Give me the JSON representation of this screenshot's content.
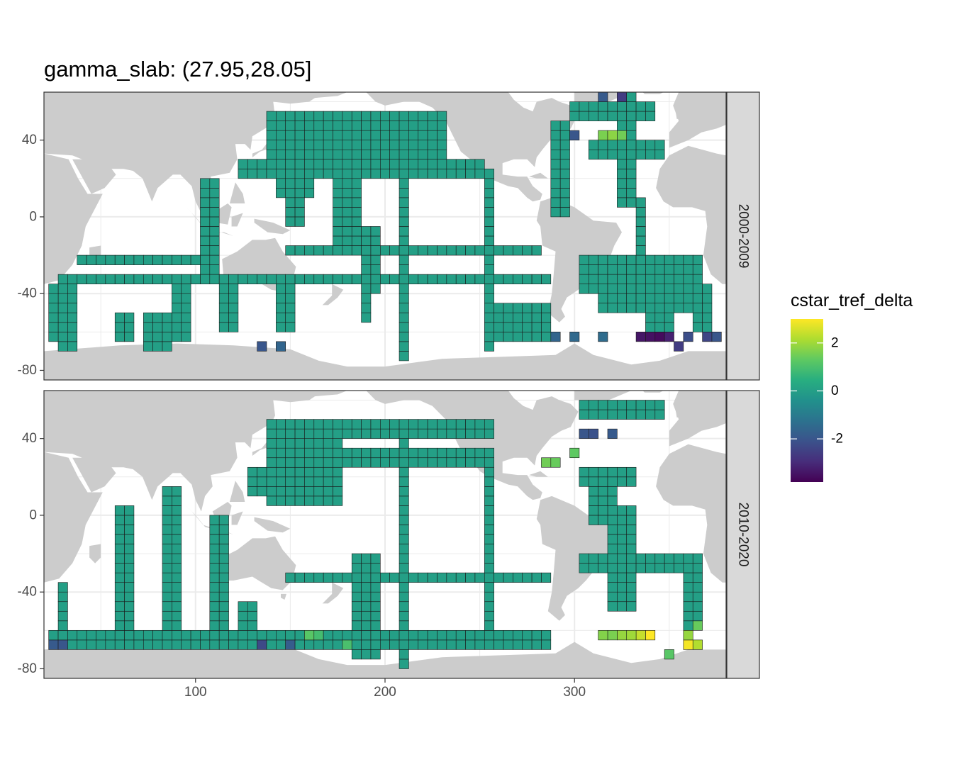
{
  "chart_data": {
    "type": "heatmap",
    "title": "gamma_slab: (27.95,28.05]",
    "xlabel": "",
    "ylabel": "",
    "xlim": [
      20,
      380
    ],
    "ylim": [
      -85,
      65
    ],
    "x_ticks": [
      100,
      200,
      300
    ],
    "y_ticks": [
      40,
      0,
      -40,
      -80
    ],
    "grid": true,
    "background": "land mask (grey) over white ocean",
    "cell_size_deg": 5,
    "facets": [
      "2000-2009",
      "2010-2020"
    ],
    "legend": {
      "title": "cstar_tref_delta",
      "placement": "right",
      "range": [
        -3.8,
        3.0
      ],
      "ticks": [
        2,
        0,
        -2
      ],
      "colormap": "viridis"
    },
    "colors": {
      "land": "#cccccc",
      "panel_border": "#333333",
      "strip_fill": "#d9d9d9",
      "grid": "#ebebeb"
    },
    "series": [
      {
        "name": "2000-2009",
        "baseline_value": 0,
        "cell_groups": [
          {
            "value": 0,
            "cells": "N Pacific box 140-230E 10-50N; zonal lines 20-35N and 40-50N from 120E to 250E; line 145-160E 10-30S; lines ~30S and ~20S across Indian and Pacific oceans; meridional lines 105E, 150E, 190E, 210E, 255E; Atlantic lines 290-330W; Atlantic 30S box 310-365E; Southern ocean 255-280E 55-60S"
          },
          {
            "value": -1.8,
            "cells": "Drake passage 285-300E 60-65S; Weddell 355-360E 60-70S; 140E 65S"
          },
          {
            "value": -3.5,
            "cells": "Weddell 330-345E 62-65S"
          },
          {
            "value": 1.5,
            "cells": "N Atlantic 310-325E 45-50N"
          },
          {
            "value": 0.8,
            "cells": "N Atlantic 330-345E 50N"
          }
        ],
        "notable_cells": [
          {
            "x": 345,
            "y": -62.5,
            "value": -3.6
          },
          {
            "x": 340,
            "y": -62.5,
            "value": -3.5
          },
          {
            "x": 335,
            "y": -62.5,
            "value": -3.4
          },
          {
            "x": 350,
            "y": -62.5,
            "value": -3.2
          },
          {
            "x": 355,
            "y": -67.5,
            "value": -2.6
          },
          {
            "x": 360,
            "y": -62.5,
            "value": -2.2
          },
          {
            "x": 370,
            "y": -62.5,
            "value": -2.4
          },
          {
            "x": 375,
            "y": -62.5,
            "value": -2.0
          },
          {
            "x": 300,
            "y": -62.5,
            "value": -1.5
          },
          {
            "x": 315,
            "y": -62.5,
            "value": -1.4
          },
          {
            "x": 290,
            "y": -62.5,
            "value": -1.6
          },
          {
            "x": 135,
            "y": -67.5,
            "value": -2.0
          },
          {
            "x": 145,
            "y": -67.5,
            "value": -1.6
          },
          {
            "x": 300,
            "y": 42.5,
            "value": -2.0
          },
          {
            "x": 315,
            "y": 62.5,
            "value": -1.9
          },
          {
            "x": 325,
            "y": 62.5,
            "value": -2.6
          },
          {
            "x": 315,
            "y": 42.5,
            "value": 1.6
          },
          {
            "x": 320,
            "y": 42.5,
            "value": 1.8
          },
          {
            "x": 325,
            "y": 42.5,
            "value": 1.5
          }
        ]
      },
      {
        "name": "2010-2020",
        "baseline_value": 0,
        "cell_groups": [
          {
            "value": 0,
            "cells": "N Pacific box 140-175E 10-45N; zonal lines 45N and 30N to 250E; meridional lines 30E, 60E, 85E, 110E, 125E, 190E, 210E, 255E; S Indian/Pacific line 60-70S from 25E to 285E; 30S line 150-285E"
          },
          {
            "value": 1.6,
            "cells": "N Atlantic 285-320E 20-30N; S Atlantic 320-345E 62-70S"
          },
          {
            "value": 2.8,
            "cells": "S Atlantic 335-340E 62-65S; 360-365E 62-67S"
          },
          {
            "value": -1.8,
            "cells": "N Atlantic 305-330E 42N; Southern 25-35E 62-70S; 135E, 150E 65S"
          }
        ],
        "notable_cells": [
          {
            "x": 340,
            "y": -62.5,
            "value": 3.0
          },
          {
            "x": 335,
            "y": -62.5,
            "value": 2.4
          },
          {
            "x": 330,
            "y": -62.5,
            "value": 2.0
          },
          {
            "x": 325,
            "y": -62.5,
            "value": 1.9
          },
          {
            "x": 320,
            "y": -62.5,
            "value": 1.6
          },
          {
            "x": 315,
            "y": -62.5,
            "value": 1.7
          },
          {
            "x": 360,
            "y": -67.5,
            "value": 2.9
          },
          {
            "x": 365,
            "y": -67.5,
            "value": 2.2
          },
          {
            "x": 360,
            "y": -62.5,
            "value": 1.9
          },
          {
            "x": 365,
            "y": -57.5,
            "value": 1.4
          },
          {
            "x": 350,
            "y": -72.5,
            "value": 1.2
          },
          {
            "x": 160,
            "y": -62.5,
            "value": 1.2
          },
          {
            "x": 165,
            "y": -62.5,
            "value": 0.9
          },
          {
            "x": 180,
            "y": -67.5,
            "value": 1.0
          },
          {
            "x": 285,
            "y": 27.5,
            "value": 1.5
          },
          {
            "x": 290,
            "y": 27.5,
            "value": 1.4
          },
          {
            "x": 300,
            "y": 32.5,
            "value": 1.3
          },
          {
            "x": 305,
            "y": 42.5,
            "value": -2.0
          },
          {
            "x": 310,
            "y": 42.5,
            "value": -2.1
          },
          {
            "x": 320,
            "y": 42.5,
            "value": -1.9
          },
          {
            "x": 30,
            "y": -67.5,
            "value": -2.0
          },
          {
            "x": 25,
            "y": -67.5,
            "value": -1.9
          },
          {
            "x": 135,
            "y": -67.5,
            "value": -2.3
          },
          {
            "x": 150,
            "y": -67.5,
            "value": -1.8
          }
        ]
      }
    ]
  }
}
